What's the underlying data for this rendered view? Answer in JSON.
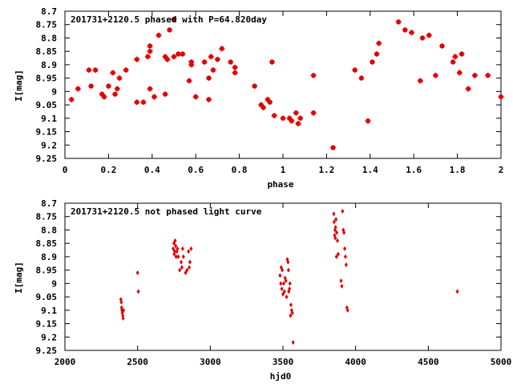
{
  "colors": {
    "point": "#e00000",
    "axis": "#000000",
    "background": "#ffffff"
  },
  "chart_data": [
    {
      "type": "scatter",
      "title": "201731+2120.5 phased with P=64.820day",
      "xlabel": "phase",
      "ylabel": "I[mag]",
      "xlim": [
        0,
        2
      ],
      "ylim": [
        8.7,
        9.25
      ],
      "y_inverted": true,
      "grid": false,
      "marker": "star",
      "xticks": [
        0,
        0.2,
        0.4,
        0.6,
        0.8,
        1,
        1.2,
        1.4,
        1.6,
        1.8,
        2
      ],
      "xtick_labels": [
        "0",
        "0.2",
        "0.4",
        "0.6",
        "0.8",
        "1",
        "1.2",
        "1.4",
        "1.6",
        "1.8",
        "2"
      ],
      "yticks": [
        8.7,
        8.75,
        8.8,
        8.85,
        8.9,
        8.95,
        9,
        9.05,
        9.1,
        9.15,
        9.2,
        9.25
      ],
      "ytick_labels": [
        "8.7",
        "8.75",
        "8.8",
        "8.85",
        "8.9",
        "8.95",
        "9",
        "9.05",
        "9.1",
        "9.15",
        "9.2",
        "9.25"
      ],
      "x": [
        0.03,
        0.06,
        0.11,
        0.12,
        0.14,
        0.17,
        0.18,
        0.2,
        0.22,
        0.23,
        0.24,
        0.25,
        0.28,
        0.33,
        0.33,
        0.36,
        0.38,
        0.39,
        0.39,
        0.39,
        0.41,
        0.43,
        0.46,
        0.46,
        0.47,
        0.48,
        0.5,
        0.5,
        0.52,
        0.54,
        0.57,
        0.58,
        0.58,
        0.6,
        0.64,
        0.66,
        0.66,
        0.67,
        0.68,
        0.7,
        0.72,
        0.76,
        0.78,
        0.78,
        0.87,
        0.9,
        0.91,
        0.93,
        0.94,
        0.95,
        0.96,
        1.0,
        1.03,
        1.04,
        1.06,
        1.07,
        1.08,
        1.14,
        1.14,
        1.23,
        1.33,
        1.36,
        1.39,
        1.41,
        1.43,
        1.44,
        1.53,
        1.56,
        1.59,
        1.63,
        1.64,
        1.67,
        1.7,
        1.73,
        1.78,
        1.79,
        1.81,
        1.82,
        1.85,
        1.88,
        1.94,
        2.0
      ],
      "y": [
        9.03,
        8.99,
        8.92,
        8.98,
        8.92,
        9.01,
        9.02,
        8.98,
        8.93,
        9.01,
        8.99,
        8.95,
        8.92,
        8.88,
        9.04,
        9.04,
        8.87,
        8.99,
        8.85,
        8.83,
        9.02,
        8.79,
        8.87,
        9.01,
        8.88,
        8.77,
        8.73,
        8.87,
        8.86,
        8.86,
        8.96,
        8.89,
        8.9,
        9.02,
        8.89,
        8.95,
        9.03,
        8.87,
        8.92,
        8.88,
        8.84,
        8.89,
        8.91,
        8.93,
        8.98,
        9.05,
        9.06,
        9.03,
        9.04,
        8.89,
        9.09,
        9.1,
        9.1,
        9.11,
        9.08,
        9.12,
        9.1,
        8.94,
        9.08,
        9.21,
        8.92,
        8.95,
        9.11,
        8.89,
        8.86,
        8.82,
        8.74,
        8.77,
        8.78,
        8.96,
        8.8,
        8.79,
        8.94,
        8.83,
        8.89,
        8.87,
        8.93,
        8.86,
        8.99,
        8.94,
        8.94,
        9.02
      ]
    },
    {
      "type": "scatter",
      "title": "201731+2120.5 not phased light curve",
      "xlabel": "hjd0",
      "ylabel": "I[mag]",
      "xlim": [
        2000,
        5000
      ],
      "ylim": [
        8.7,
        9.25
      ],
      "y_inverted": true,
      "grid": false,
      "marker": "diamond",
      "xticks": [
        2000,
        2500,
        3000,
        3500,
        4000,
        4500,
        5000
      ],
      "xtick_labels": [
        "2000",
        "2500",
        "3000",
        "3500",
        "4000",
        "4500",
        "5000"
      ],
      "yticks": [
        8.7,
        8.75,
        8.8,
        8.85,
        8.9,
        8.95,
        9,
        9.05,
        9.1,
        9.15,
        9.2,
        9.25
      ],
      "ytick_labels": [
        "8.7",
        "8.75",
        "8.8",
        "8.85",
        "8.9",
        "8.95",
        "9",
        "9.05",
        "9.1",
        "9.15",
        "9.2",
        "9.25"
      ],
      "x": [
        2385,
        2388,
        2390,
        2392,
        2395,
        2398,
        2400,
        2403,
        2500,
        2505,
        2745,
        2750,
        2752,
        2755,
        2758,
        2762,
        2765,
        2770,
        2775,
        2780,
        2790,
        2800,
        2805,
        2810,
        2815,
        2830,
        2840,
        2850,
        2855,
        2860,
        2868,
        3480,
        3485,
        3488,
        3492,
        3495,
        3500,
        3505,
        3510,
        3515,
        3520,
        3525,
        3530,
        3535,
        3538,
        3540,
        3545,
        3548,
        3552,
        3555,
        3560,
        3565,
        3570,
        3850,
        3852,
        3855,
        3858,
        3860,
        3862,
        3865,
        3868,
        3870,
        3875,
        3880,
        3900,
        3905,
        3910,
        3915,
        3920,
        3925,
        3930,
        3935,
        3940,
        3945,
        4700
      ],
      "y": [
        9.06,
        9.07,
        9.09,
        9.1,
        9.11,
        9.12,
        9.13,
        9.1,
        8.96,
        9.03,
        8.87,
        8.85,
        8.89,
        8.88,
        8.84,
        8.86,
        8.9,
        8.88,
        8.87,
        8.9,
        8.95,
        8.92,
        8.94,
        8.87,
        8.9,
        8.96,
        8.95,
        8.88,
        8.94,
        8.92,
        8.87,
        8.97,
        9.0,
        8.94,
        9.02,
        8.95,
        9.04,
        9.0,
        9.03,
        8.98,
        8.99,
        9.05,
        8.91,
        8.92,
        8.95,
        9.03,
        9.02,
        9.0,
        9.12,
        9.08,
        9.1,
        9.11,
        9.22,
        8.74,
        8.77,
        8.82,
        8.8,
        8.83,
        8.79,
        8.76,
        8.9,
        8.81,
        8.84,
        8.89,
        8.99,
        9.01,
        8.73,
        8.8,
        8.81,
        8.87,
        8.9,
        8.93,
        9.09,
        9.1,
        9.03
      ]
    }
  ]
}
